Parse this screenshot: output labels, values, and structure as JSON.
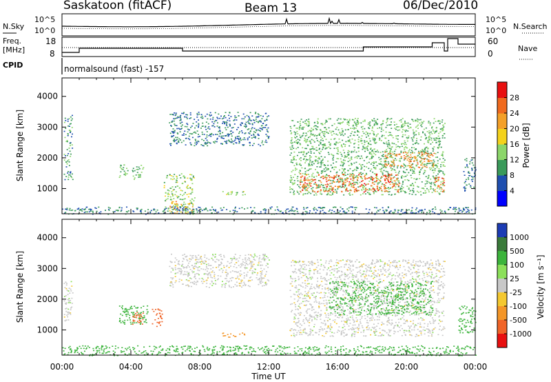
{
  "header": {
    "station": "Saskatoon (fitACF)",
    "beam": "Beam 13",
    "date": "06/Dec/2010"
  },
  "noise_panel": {
    "left_label": "N.Sky",
    "ticks_left": [
      "10^5",
      "10^0"
    ],
    "ticks_right": [
      "10^5",
      "10^0"
    ],
    "right_label": "N.Search"
  },
  "freq_panel": {
    "label_line1": "Freq.",
    "label_line2": "[MHz]",
    "ticks_left": [
      "18",
      "8"
    ],
    "ticks_right": [
      "60",
      "0"
    ],
    "right_label": "Nave"
  },
  "cpid": {
    "label": "CPID",
    "value": "normalsound (fast) -157"
  },
  "colors": {
    "power_scale": [
      "#0000ff",
      "#1f4fb0",
      "#3a9a5a",
      "#8cd66a",
      "#f4d21c",
      "#f4a028",
      "#f06a1e",
      "#e81010"
    ],
    "velocity_scale": [
      "#1c3cb4",
      "#3a7a3a",
      "#3cb43c",
      "#8ce05a",
      "#c8c8c8",
      "#f4c830",
      "#f49628",
      "#f06428",
      "#e81010"
    ]
  },
  "chart_data": [
    {
      "type": "heatmap",
      "panel": "power",
      "ylabel": "Slant Range [km]",
      "x_ticks": [
        "00:00",
        "04:00",
        "08:00",
        "12:00",
        "16:00",
        "20:00",
        "00:00"
      ],
      "xlim_hours": [
        0,
        24
      ],
      "y_ticks": [
        1000,
        2000,
        3000,
        4000
      ],
      "ylim": [
        180,
        4600
      ],
      "colorbar_label": "Power [dB]",
      "colorbar_ticks": [
        4,
        8,
        12,
        16,
        20,
        24,
        28
      ],
      "colorbar_range": [
        0,
        32
      ],
      "regions": [
        {
          "t0": 0.1,
          "t1": 0.6,
          "r0": 1300,
          "r1": 3400,
          "value": 10
        },
        {
          "t0": 3.3,
          "t1": 4.7,
          "r0": 1300,
          "r1": 1800,
          "value": 12
        },
        {
          "t0": 5.9,
          "t1": 7.7,
          "r0": 180,
          "r1": 1500,
          "value": 14
        },
        {
          "t0": 6.2,
          "t1": 7.6,
          "r0": 200,
          "r1": 600,
          "value": 22
        },
        {
          "t0": 6.2,
          "t1": 12.0,
          "r0": 2400,
          "r1": 3500,
          "value": 8
        },
        {
          "t0": 9.3,
          "t1": 10.6,
          "r0": 780,
          "r1": 920,
          "value": 14
        },
        {
          "t0": 13.2,
          "t1": 22.2,
          "r0": 800,
          "r1": 3300,
          "value": 12
        },
        {
          "t0": 13.8,
          "t1": 19.6,
          "r0": 900,
          "r1": 1500,
          "value": 26
        },
        {
          "t0": 18.7,
          "t1": 21.6,
          "r0": 1700,
          "r1": 2200,
          "value": 24
        },
        {
          "t0": 21.6,
          "t1": 22.2,
          "r0": 900,
          "r1": 1400,
          "value": 26
        },
        {
          "t0": 23.3,
          "t1": 24.0,
          "r0": 900,
          "r1": 2000,
          "value": 8
        },
        {
          "t0": 0.0,
          "t1": 24.0,
          "r0": 180,
          "r1": 420,
          "value": 8
        }
      ]
    },
    {
      "type": "heatmap",
      "panel": "velocity",
      "ylabel": "Slant Range [km]",
      "xlabel": "Time UT",
      "x_ticks": [
        "00:00",
        "04:00",
        "08:00",
        "12:00",
        "16:00",
        "20:00",
        "00:00"
      ],
      "xlim_hours": [
        0,
        24
      ],
      "y_ticks": [
        1000,
        2000,
        3000,
        4000
      ],
      "ylim": [
        180,
        4600
      ],
      "colorbar_label": "Velocity [m s⁻¹]",
      "colorbar_ticks": [
        "1000",
        "500",
        "100",
        "25",
        "-25",
        "-100",
        "-500",
        "-1000"
      ],
      "regions": [
        {
          "t0": 0.1,
          "t1": 0.6,
          "r0": 1300,
          "r1": 2600,
          "value": 0
        },
        {
          "t0": 3.3,
          "t1": 5.0,
          "r0": 1200,
          "r1": 1800,
          "value": 150
        },
        {
          "t0": 4.0,
          "t1": 4.8,
          "r0": 1200,
          "r1": 1600,
          "value": -600
        },
        {
          "t0": 5.2,
          "t1": 5.8,
          "r0": 1100,
          "r1": 1700,
          "value": -600
        },
        {
          "t0": 6.2,
          "t1": 12.0,
          "r0": 2400,
          "r1": 3500,
          "value": 0
        },
        {
          "t0": 9.3,
          "t1": 10.6,
          "r0": 780,
          "r1": 920,
          "value": -150
        },
        {
          "t0": 13.2,
          "t1": 22.2,
          "r0": 800,
          "r1": 3300,
          "value": 0
        },
        {
          "t0": 15.5,
          "t1": 21.5,
          "r0": 1500,
          "r1": 2600,
          "value": 150
        },
        {
          "t0": 23.0,
          "t1": 24.0,
          "r0": 900,
          "r1": 1800,
          "value": 150
        },
        {
          "t0": 0.0,
          "t1": 24.0,
          "r0": 180,
          "r1": 500,
          "value": 200
        }
      ]
    }
  ]
}
